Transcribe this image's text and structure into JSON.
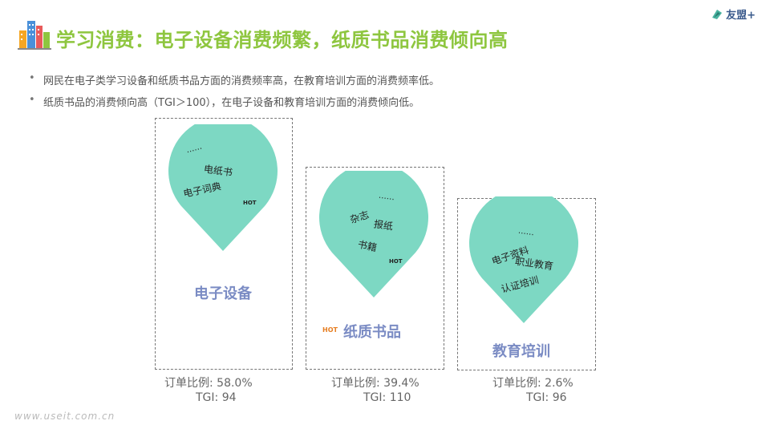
{
  "header": {
    "title": "学习消费：电子设备消费频繁，纸质书品消费倾向高",
    "brand": "友盟+"
  },
  "bullets": [
    "网民在电子类学习设备和纸质书品方面的消费频率高，在教育培训方面的消费频率低。",
    "纸质书品的消费倾向高（TGI＞100），在电子设备和教育培训方面的消费倾向低。"
  ],
  "panels": [
    {
      "label": "电子设备",
      "tags": [
        "……",
        "电纸书",
        "电子词典"
      ],
      "hot": "HOT",
      "order": "订单比例: 58.0%",
      "tgi": "TGI:  94"
    },
    {
      "label": "纸质书品",
      "tags": [
        "……",
        "杂志",
        "报纸",
        "书籍"
      ],
      "hot": "HOT",
      "label_hot": "HOT",
      "order": "订单比例: 39.4%",
      "tgi": "TGI: 110"
    },
    {
      "label": "教育培训",
      "tags": [
        "……",
        "电子资料",
        "职业教育",
        "认证培训"
      ],
      "order": "订单比例: 2.6%",
      "tgi": "TGI:  96"
    }
  ],
  "colors": {
    "pin": "#7dd8c3",
    "title": "#8ec63f",
    "label": "#7b8cc4",
    "hot_label": "#e67e22"
  },
  "footer": {
    "watermark": "www.useit.com.cn"
  }
}
